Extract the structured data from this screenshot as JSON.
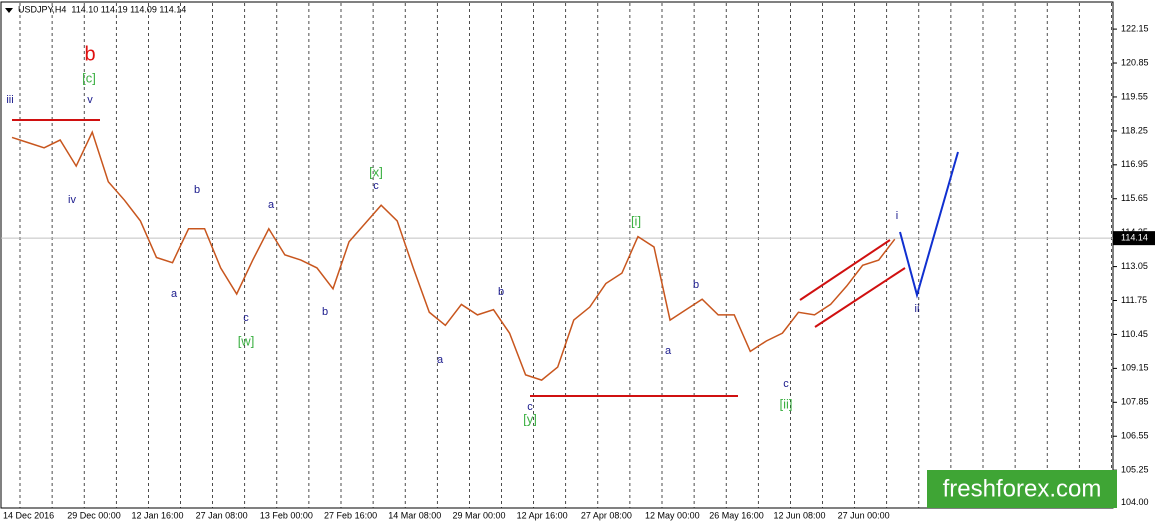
{
  "chart_data": {
    "type": "line",
    "header": "USDJPY,H4  114.10 114.19 114.09 114.14",
    "watermark": "freshforex.com",
    "categories": [
      null,
      "14 Dec 2016",
      null,
      null,
      null,
      "29 Dec 00:00",
      null,
      null,
      null,
      "12 Jan 16:00",
      null,
      null,
      null,
      "27 Jan 08:00",
      null,
      null,
      null,
      "13 Feb 00:00",
      null,
      null,
      null,
      "27 Feb 16:00",
      null,
      null,
      null,
      "14 Mar 08:00",
      null,
      null,
      null,
      "29 Mar 00:00",
      null,
      null,
      null,
      "12 Apr 16:00",
      null,
      null,
      null,
      "27 Apr 08:00",
      null,
      null,
      null,
      "12 May 00:00",
      null,
      null,
      null,
      "26 May 16:00",
      null,
      null,
      null,
      "12 Jun 08:00",
      null,
      null,
      null,
      "27 Jun 00:00",
      null,
      null
    ],
    "series": [
      {
        "name": "USDJPY",
        "color": "#c8561e",
        "values": [
          118.0,
          117.8,
          117.6,
          117.9,
          116.9,
          118.2,
          116.3,
          115.6,
          114.8,
          113.4,
          113.2,
          114.5,
          114.5,
          113.0,
          112.0,
          113.3,
          114.5,
          113.5,
          113.3,
          113.0,
          112.2,
          114.0,
          114.7,
          115.4,
          114.8,
          113.0,
          111.3,
          110.8,
          111.6,
          111.2,
          111.4,
          110.5,
          108.9,
          108.7,
          109.2,
          111.0,
          111.5,
          112.4,
          112.8,
          114.2,
          113.8,
          111.0,
          111.4,
          111.8,
          111.2,
          111.2,
          109.8,
          110.2,
          110.5,
          111.3,
          111.2,
          111.6,
          112.3,
          113.1,
          113.3,
          114.1
        ]
      }
    ],
    "current_price": 114.14,
    "ylim": [
      103.8,
      123.15
    ],
    "yticks": [
      {
        "value": 104,
        "label": "104.00"
      },
      105.25,
      106.55,
      107.85,
      109.15,
      110.45,
      111.75,
      113.05,
      114.35,
      115.65,
      116.95,
      118.25,
      119.55,
      120.85,
      122.15
    ],
    "annotations": [
      "iii",
      "v",
      "[c]",
      "b",
      "iv",
      "a",
      "b",
      "c",
      "[w]",
      "a",
      "b",
      "[x]",
      "c",
      "a",
      "b",
      "c",
      "[y]",
      "[i]",
      "a",
      "b",
      "c",
      "[ii]",
      "i",
      "ii"
    ]
  }
}
